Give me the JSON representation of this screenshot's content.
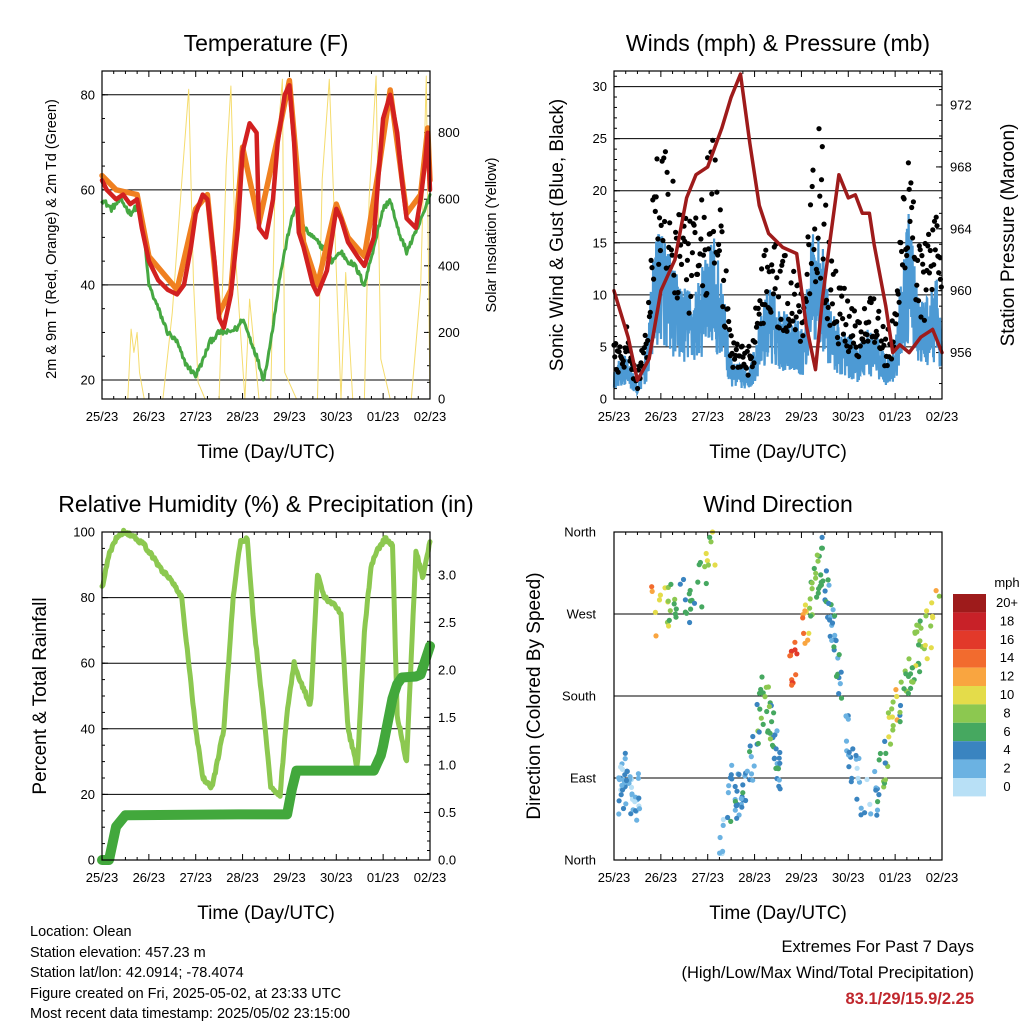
{
  "chart_data": [
    {
      "type": "line",
      "title": "Temperature (F)",
      "xlabel": "Time (Day/UTC)",
      "ylabel": "2m & 9m T (Red, Orange) & 2m Td (Green)",
      "y2label": "Solar Insolation (Yellow)",
      "x_ticks": [
        "25/23",
        "26/23",
        "27/23",
        "28/23",
        "29/23",
        "30/23",
        "01/23",
        "02/23"
      ],
      "ylim": [
        16,
        85
      ],
      "y_ticks": [
        20,
        40,
        60,
        80
      ],
      "y2lim": [
        0,
        985
      ],
      "y2_ticks": [
        0,
        200,
        400,
        600,
        800
      ],
      "grid": true,
      "series": [
        {
          "color": "#d22020",
          "axis": "left",
          "x": [
            0,
            0.1,
            0.3,
            0.45,
            0.6,
            0.75,
            0.85,
            1,
            1.2,
            1.4,
            1.6,
            1.75,
            1.9,
            2,
            2.15,
            2.25,
            2.4,
            2.5,
            2.6,
            2.75,
            2.9,
            3,
            3.15,
            3.3,
            3.35,
            3.5,
            3.65,
            3.75,
            3.9,
            4,
            4.1,
            4.2,
            4.3,
            4.5,
            4.6,
            4.8,
            5,
            5.1,
            5.25,
            5.45,
            5.6,
            5.8,
            5.9,
            6,
            6.15,
            6.3,
            6.4,
            6.5,
            6.7,
            6.8,
            6.9,
            6.95,
            7
          ],
          "y": [
            62,
            60,
            58,
            59,
            57,
            58,
            52,
            45,
            41,
            39,
            38,
            40,
            48,
            55,
            59,
            58,
            45,
            33,
            31,
            38,
            52,
            68,
            74,
            72,
            52,
            50,
            58,
            70,
            80,
            82,
            70,
            51,
            48,
            40,
            38,
            43,
            56,
            54,
            49,
            46,
            44,
            50,
            63,
            75,
            80,
            72,
            62,
            54,
            52,
            58,
            66,
            72,
            60
          ]
        },
        {
          "color": "#f08020",
          "axis": "left",
          "x": [
            0,
            0.3,
            0.75,
            1,
            1.6,
            2,
            2.25,
            2.5,
            2.75,
            3,
            3.35,
            3.75,
            4,
            4.3,
            4.6,
            5,
            5.25,
            5.6,
            5.9,
            6.15,
            6.5,
            6.8,
            6.95,
            7
          ],
          "y": [
            63,
            60,
            59,
            46,
            39,
            56,
            59,
            34,
            39,
            69,
            53,
            71,
            83,
            49,
            40,
            57,
            50,
            46,
            64,
            81,
            55,
            59,
            73,
            62
          ]
        },
        {
          "color": "#46a842",
          "axis": "left",
          "x": [
            0,
            0.2,
            0.4,
            0.6,
            0.8,
            0.9,
            1,
            1.2,
            1.4,
            1.6,
            1.75,
            1.9,
            2,
            2.15,
            2.3,
            2.5,
            2.7,
            2.9,
            3,
            3.15,
            3.3,
            3.45,
            3.6,
            3.8,
            4,
            4.15,
            4.3,
            4.5,
            4.7,
            4.9,
            5.1,
            5.25,
            5.4,
            5.6,
            5.8,
            6,
            6.15,
            6.3,
            6.5,
            6.7,
            6.9,
            7
          ],
          "y": [
            58,
            56,
            58,
            55,
            57,
            50,
            40,
            35,
            30,
            28,
            24,
            22,
            21,
            24,
            28,
            30,
            30,
            31,
            33,
            29,
            25,
            20,
            28,
            42,
            52,
            57,
            52,
            50,
            48,
            45,
            47,
            45,
            44,
            40,
            48,
            56,
            58,
            52,
            47,
            51,
            56,
            59
          ]
        },
        {
          "color": "#f5dc6e",
          "axis": "right",
          "x": [
            0.55,
            0.62,
            0.68,
            0.75,
            0.8,
            0.9,
            1.3,
            1.5,
            1.7,
            1.85,
            1.95,
            2.05,
            2.2,
            2.5,
            2.65,
            2.75,
            2.85,
            3.05,
            3.15,
            3.35,
            3.6,
            3.7,
            3.85,
            3.9,
            4.15,
            4.35,
            4.6,
            4.7,
            4.85,
            5.1,
            5.2,
            5.35,
            5.6,
            5.7,
            5.85,
            5.95,
            6.15,
            6.35,
            6.6,
            6.8,
            6.92,
            7
          ],
          "y": [
            0,
            210,
            140,
            200,
            80,
            0,
            0,
            260,
            650,
            930,
            360,
            50,
            0,
            0,
            700,
            940,
            430,
            0,
            300,
            0,
            0,
            700,
            960,
            80,
            0,
            0,
            0,
            660,
            960,
            0,
            380,
            0,
            0,
            600,
            970,
            120,
            0,
            0,
            0,
            330,
            970,
            0
          ]
        }
      ]
    },
    {
      "type": "scatter",
      "title": "Winds (mph) & Pressure (mb)",
      "xlabel": "Time (Day/UTC)",
      "ylabel": "Sonic Wind & Gust (Blue, Black)",
      "y2label": "Station Pressure (Maroon)",
      "x_ticks": [
        "25/23",
        "26/23",
        "27/23",
        "28/23",
        "29/23",
        "30/23",
        "01/23",
        "02/23"
      ],
      "ylim": [
        0,
        31.5
      ],
      "y_ticks": [
        0,
        5,
        10,
        15,
        20,
        25,
        30
      ],
      "y2lim": [
        953.0,
        974.2
      ],
      "y2_ticks": [
        956,
        960,
        964,
        968,
        972
      ],
      "grid": true,
      "series": [
        {
          "type": "scatter",
          "color": "#000000",
          "axis": "left",
          "x": [
            0,
            0.25,
            0.5,
            0.7,
            0.85,
            1,
            1.15,
            1.3,
            1.5,
            1.7,
            1.9,
            2.1,
            2.3,
            2.5,
            2.7,
            2.9,
            3.1,
            3.3,
            3.5,
            3.7,
            3.9,
            4.05,
            4.2,
            4.4,
            4.6,
            4.8,
            5,
            5.2,
            5.4,
            5.6,
            5.8,
            6,
            6.15,
            6.3,
            6.5,
            6.7,
            6.9,
            7
          ],
          "y": [
            5,
            7,
            2,
            8,
            22,
            27,
            23,
            19,
            17,
            16,
            20,
            25,
            18,
            6,
            5,
            5,
            11,
            18,
            14,
            13,
            12,
            11,
            24,
            26,
            14,
            11,
            10,
            8,
            11,
            10,
            6,
            8,
            20,
            28,
            15,
            15,
            18,
            9
          ]
        },
        {
          "type": "line",
          "color": "#9e1b1b",
          "axis": "right",
          "x": [
            0,
            0.3,
            0.5,
            0.75,
            1,
            1.3,
            1.55,
            1.75,
            2,
            2.3,
            2.5,
            2.7,
            2.9,
            3.1,
            3.3,
            3.6,
            3.9,
            4.1,
            4.3,
            4.45,
            4.6,
            4.8,
            5,
            5.15,
            5.3,
            5.45,
            5.55,
            5.8,
            5.95,
            6.1,
            6.3,
            6.55,
            6.8,
            7
          ],
          "y": [
            960,
            957,
            954.2,
            955.6,
            960,
            962,
            966,
            967.5,
            968,
            970.5,
            972.5,
            974,
            969.5,
            965.5,
            963.7,
            962.8,
            962.4,
            957.8,
            954.9,
            959.5,
            963,
            967.5,
            966,
            966.2,
            965,
            965,
            963,
            959,
            956,
            956.5,
            956,
            957,
            957.5,
            956
          ]
        }
      ]
    },
    {
      "type": "line",
      "title": "Relative Humidity (%) & Precipitation (in)",
      "xlabel": "Time (Day/UTC)",
      "ylabel": "Percent & Total Rainfall",
      "x_ticks": [
        "25/23",
        "26/23",
        "27/23",
        "28/23",
        "29/23",
        "30/23",
        "01/23",
        "02/23"
      ],
      "ylim": [
        0,
        100
      ],
      "y_ticks": [
        0,
        20,
        40,
        60,
        80,
        100
      ],
      "y2lim": [
        0,
        3.45
      ],
      "y2_ticks": [
        0.0,
        0.5,
        1.0,
        1.5,
        2.0,
        2.5,
        3.0
      ],
      "grid": true,
      "series": [
        {
          "color": "#8cc850",
          "axis": "left",
          "x": [
            0,
            0.15,
            0.3,
            0.45,
            0.65,
            0.9,
            1.1,
            1.3,
            1.5,
            1.7,
            1.85,
            2,
            2.15,
            2.35,
            2.6,
            2.8,
            2.95,
            3.1,
            3.25,
            3.45,
            3.6,
            3.8,
            3.95,
            4.1,
            4.25,
            4.45,
            4.6,
            4.75,
            4.95,
            5.1,
            5.25,
            5.45,
            5.6,
            5.75,
            5.9,
            6.05,
            6.2,
            6.3,
            6.5,
            6.7,
            6.85,
            7
          ],
          "y": [
            83,
            93,
            98,
            100,
            99,
            96,
            92,
            88,
            85,
            80,
            60,
            40,
            25,
            22,
            40,
            80,
            97,
            98,
            70,
            45,
            22,
            20,
            45,
            60,
            54,
            47,
            87,
            80,
            78,
            75,
            40,
            28,
            70,
            90,
            95,
            98,
            96,
            44,
            30,
            94,
            86,
            97
          ]
        },
        {
          "color": "#42a83c",
          "axis": "right",
          "x": [
            0,
            0.15,
            0.3,
            0.5,
            2.9,
            3,
            3.1,
            3.95,
            4.05,
            4.15,
            5.8,
            5.95,
            6,
            6.2,
            6.3,
            6.4,
            6.7,
            6.8,
            6.9,
            7
          ],
          "y": [
            0,
            0,
            0.35,
            0.47,
            0.48,
            0.48,
            0.48,
            0.48,
            0.74,
            0.94,
            0.94,
            1.1,
            1.2,
            1.7,
            1.85,
            1.92,
            1.93,
            1.95,
            2.1,
            2.25
          ]
        }
      ]
    },
    {
      "type": "scatter",
      "title": "Wind Direction",
      "xlabel": "Time (Day/UTC)",
      "ylabel": "Direction (Colored By Speed)",
      "x_ticks": [
        "25/23",
        "26/23",
        "27/23",
        "28/23",
        "29/23",
        "30/23",
        "01/23",
        "02/23"
      ],
      "ylim": [
        0,
        360
      ],
      "y_ticks": [
        "North",
        "East",
        "South",
        "West",
        "North"
      ],
      "grid": true,
      "colorbar": {
        "unit": "mph",
        "labels": [
          "20+",
          "18",
          "16",
          "14",
          "12",
          "10",
          "8",
          "6",
          "4",
          "2",
          "0"
        ],
        "colors": [
          "#9e1b1b",
          "#c82128",
          "#e2392a",
          "#f26b2e",
          "#f9a540",
          "#e4dc4a",
          "#8cc850",
          "#46a860",
          "#3a84c0",
          "#6bb2e2",
          "#b8e0f6"
        ]
      },
      "series": [
        {
          "x": [
            0.1,
            0.25,
            0.4,
            0.55
          ],
          "y": [
            75,
            90,
            60,
            80
          ],
          "speed": [
            2,
            3,
            1,
            2
          ]
        },
        {
          "x": [
            0.8,
            0.9,
            1.05,
            1.2,
            1.35,
            1.5,
            1.7,
            1.85,
            2,
            2.1,
            2.2
          ],
          "y": [
            275,
            265,
            270,
            285,
            290,
            280,
            290,
            300,
            320,
            335,
            345
          ],
          "speed": [
            13,
            11,
            9,
            8,
            7,
            6,
            7,
            6,
            9,
            8,
            10
          ]
        },
        {
          "x": [
            2.25,
            2.4,
            2.55,
            2.7,
            2.8,
            2.9,
            3
          ],
          "y": [
            10,
            60,
            80,
            65,
            90,
            100,
            115
          ],
          "speed": [
            2,
            3,
            4,
            3,
            4,
            5,
            3
          ]
        },
        {
          "x": [
            3.05,
            3.15,
            3.3,
            3.45,
            3.55
          ],
          "y": [
            145,
            180,
            165,
            120,
            95
          ],
          "speed": [
            6,
            8,
            7,
            4,
            5
          ]
        },
        {
          "x": [
            3.75,
            3.9,
            4.05,
            4.2,
            4.35,
            4.5
          ],
          "y": [
            210,
            230,
            250,
            280,
            320,
            340
          ],
          "speed": [
            14,
            15,
            12,
            8,
            6,
            5
          ]
        },
        {
          "x": [
            4.5,
            4.65,
            4.8,
            4.95,
            5.1
          ],
          "y": [
            300,
            260,
            210,
            150,
            100
          ],
          "speed": [
            5,
            4,
            4,
            3,
            3
          ]
        },
        {
          "x": [
            5.15,
            5.3,
            5.45,
            5.6,
            5.75,
            5.9,
            6.05
          ],
          "y": [
            100,
            70,
            60,
            75,
            100,
            150,
            180
          ],
          "speed": [
            2,
            3,
            2,
            4,
            6,
            8,
            11
          ]
        },
        {
          "x": [
            6.1,
            6.3,
            6.5,
            6.7,
            6.85,
            6.95
          ],
          "y": [
            180,
            210,
            235,
            250,
            265,
            280
          ],
          "speed": [
            6,
            7,
            8,
            9,
            10,
            7
          ]
        }
      ]
    }
  ],
  "footer": {
    "location": "Location: Olean",
    "elevation": "Station elevation: 457.23 m",
    "latlon": "Station lat/lon: 42.0914; -78.4074",
    "created": "Figure created on Fri, 2025-05-02, at 23:33 UTC",
    "latest": "Most recent data timestamp: 2025/05/02 23:15:00"
  },
  "extremes": {
    "line1": "Extremes For Past 7 Days",
    "line2": "(High/Low/Max Wind/Total Precipitation)",
    "values": "83.1/29/15.9/2.25"
  }
}
